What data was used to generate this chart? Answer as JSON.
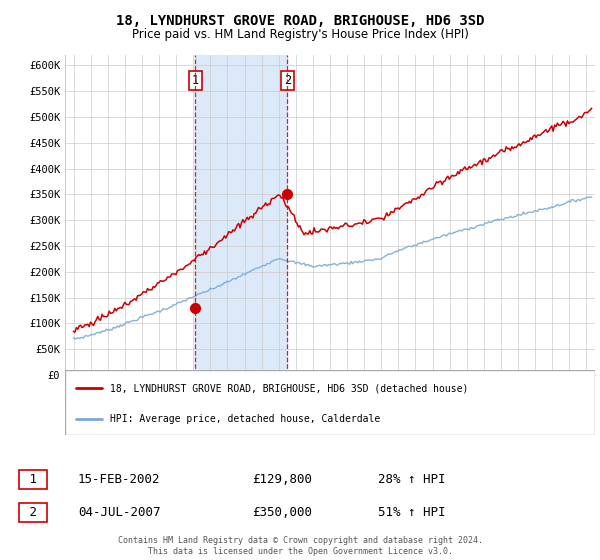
{
  "title": "18, LYNDHURST GROVE ROAD, BRIGHOUSE, HD6 3SD",
  "subtitle": "Price paid vs. HM Land Registry's House Price Index (HPI)",
  "legend_line1": "18, LYNDHURST GROVE ROAD, BRIGHOUSE, HD6 3SD (detached house)",
  "legend_line2": "HPI: Average price, detached house, Calderdale",
  "transaction1_date": "15-FEB-2002",
  "transaction1_price": "£129,800",
  "transaction1_hpi": "28% ↑ HPI",
  "transaction2_date": "04-JUL-2007",
  "transaction2_price": "£350,000",
  "transaction2_hpi": "51% ↑ HPI",
  "footer": "Contains HM Land Registry data © Crown copyright and database right 2024.\nThis data is licensed under the Open Government Licence v3.0.",
  "hpi_color": "#7aaad4",
  "price_color": "#cc0000",
  "marker1_year": 2002.12,
  "marker2_year": 2007.5,
  "marker1_price": 129800,
  "marker2_price": 350000,
  "ylim": [
    0,
    620000
  ],
  "yticks": [
    0,
    50000,
    100000,
    150000,
    200000,
    250000,
    300000,
    350000,
    400000,
    450000,
    500000,
    550000,
    600000
  ],
  "ytick_labels": [
    "£0",
    "£50K",
    "£100K",
    "£150K",
    "£200K",
    "£250K",
    "£300K",
    "£350K",
    "£400K",
    "£450K",
    "£500K",
    "£550K",
    "£600K"
  ],
  "xmin": 1994.5,
  "xmax": 2025.5,
  "shaded_start": 2002.12,
  "shaded_end": 2007.5,
  "shaded_color": "#dce9f8",
  "grid_color": "#cccccc",
  "bg_color": "#ffffff"
}
